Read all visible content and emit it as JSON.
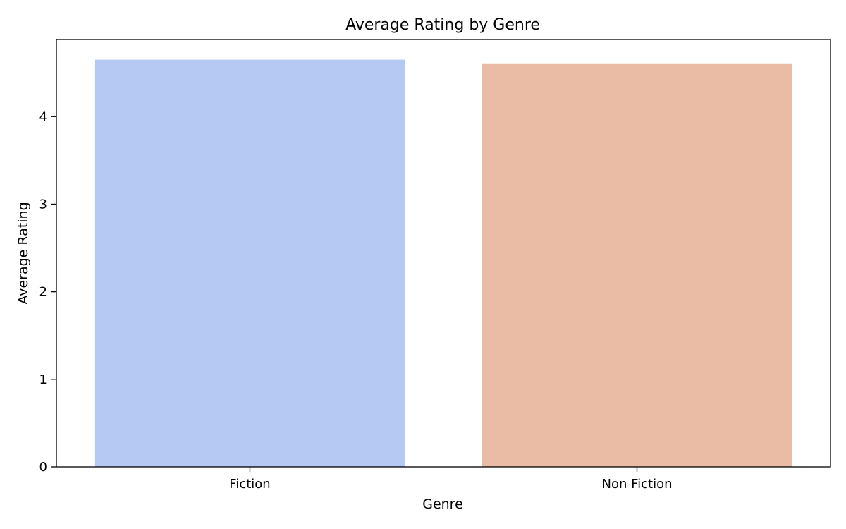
{
  "chart_data": {
    "type": "bar",
    "title": "Average Rating by Genre",
    "xlabel": "Genre",
    "ylabel": "Average Rating",
    "categories": [
      "Fiction",
      "Non Fiction"
    ],
    "values": [
      4.65,
      4.6
    ],
    "colors": [
      "#b5c9f2",
      "#ebbca5"
    ],
    "ylim": [
      0,
      4.88
    ],
    "yticks": [
      0,
      1,
      2,
      3,
      4
    ],
    "grid": false
  }
}
